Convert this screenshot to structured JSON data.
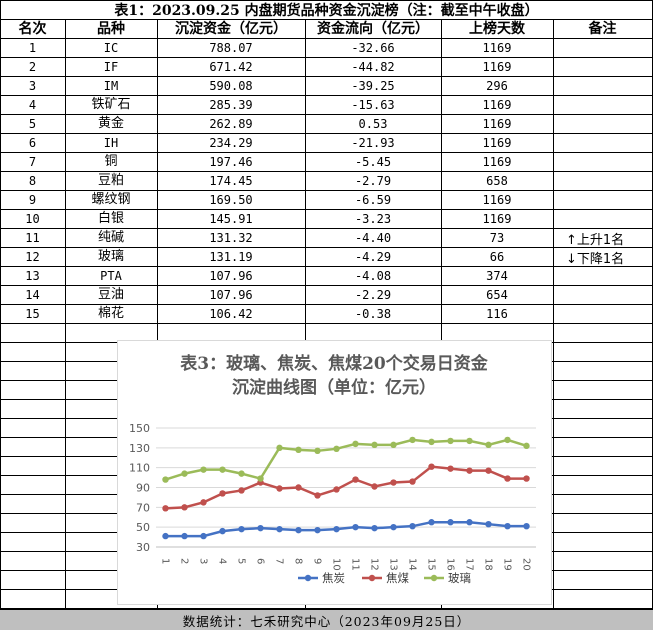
{
  "table": {
    "title": "表1：2023.09.25 内盘期货品种资金沉淀榜（注：截至中午收盘）",
    "headers": [
      "名次",
      "品种",
      "沉淀资金（亿元）",
      "资金流向（亿元）",
      "上榜天数",
      "备注"
    ],
    "rows": [
      [
        "1",
        "IC",
        "788.07",
        "-32.66",
        "1169",
        ""
      ],
      [
        "2",
        "IF",
        "671.42",
        "-44.82",
        "1169",
        ""
      ],
      [
        "3",
        "IM",
        "590.08",
        "-39.25",
        "296",
        ""
      ],
      [
        "4",
        "铁矿石",
        "285.39",
        "-15.63",
        "1169",
        ""
      ],
      [
        "5",
        "黄金",
        "262.89",
        "0.53",
        "1169",
        ""
      ],
      [
        "6",
        "IH",
        "234.29",
        "-21.93",
        "1169",
        ""
      ],
      [
        "7",
        "铜",
        "197.46",
        "-5.45",
        "1169",
        ""
      ],
      [
        "8",
        "豆粕",
        "174.45",
        "-2.79",
        "658",
        ""
      ],
      [
        "9",
        "螺纹钢",
        "169.50",
        "-6.59",
        "1169",
        ""
      ],
      [
        "10",
        "白银",
        "145.91",
        "-3.23",
        "1169",
        ""
      ],
      [
        "11",
        "纯碱",
        "131.32",
        "-4.40",
        "73",
        "↑上升1名"
      ],
      [
        "12",
        "玻璃",
        "131.19",
        "-4.29",
        "66",
        "↓下降1名"
      ],
      [
        "13",
        "PTA",
        "107.96",
        "-4.08",
        "374",
        ""
      ],
      [
        "14",
        "豆油",
        "107.96",
        "-2.29",
        "654",
        ""
      ],
      [
        "15",
        "棉花",
        "106.42",
        "-0.38",
        "116",
        ""
      ]
    ]
  },
  "footer": "数据统计：七禾研究中心（2023年09月25日）",
  "chart_data": {
    "type": "line",
    "title": "表3：玻璃、焦炭、焦煤20个交易日资金沉淀曲线图（单位：亿元）",
    "title_lines": [
      "表3：玻璃、焦炭、焦煤20个交易日资金",
      "沉淀曲线图（单位：亿元）"
    ],
    "x": [
      "1",
      "2",
      "3",
      "4",
      "5",
      "6",
      "7",
      "8",
      "9",
      "10",
      "11",
      "12",
      "13",
      "14",
      "15",
      "16",
      "17",
      "18",
      "19",
      "20"
    ],
    "ylim": [
      30,
      150
    ],
    "yticks": [
      30,
      50,
      70,
      90,
      110,
      130,
      150
    ],
    "grid": true,
    "legend_position": "bottom",
    "series": [
      {
        "name": "焦炭",
        "color": "#4472c4",
        "values": [
          41,
          41,
          41,
          46,
          48,
          49,
          48,
          47,
          47,
          48,
          50,
          49,
          50,
          51,
          55,
          55,
          55,
          53,
          51,
          51
        ]
      },
      {
        "name": "焦煤",
        "color": "#c0504d",
        "values": [
          69,
          70,
          75,
          84,
          87,
          95,
          89,
          90,
          82,
          88,
          98,
          91,
          95,
          96,
          111,
          109,
          107,
          107,
          99,
          99
        ]
      },
      {
        "name": "玻璃",
        "color": "#9bbb59",
        "values": [
          98,
          104,
          108,
          108,
          104,
          99,
          130,
          128,
          127,
          129,
          134,
          133,
          133,
          138,
          136,
          137,
          137,
          133,
          138,
          132
        ]
      }
    ]
  }
}
